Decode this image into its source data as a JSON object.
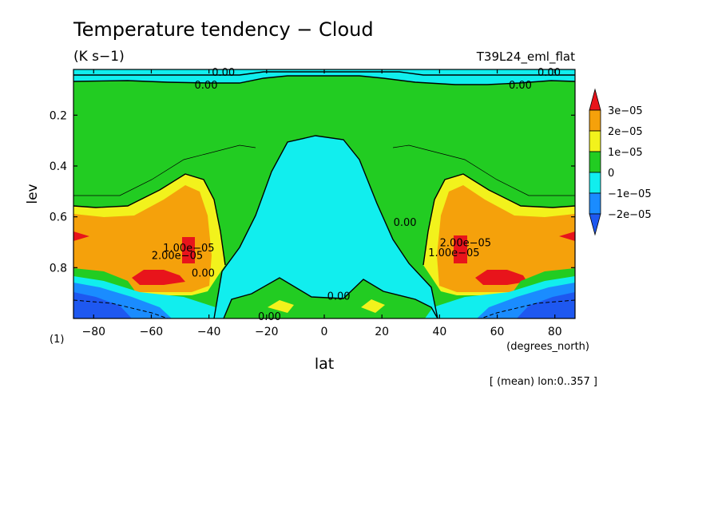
{
  "header": {
    "title": "Temperature tendency − Cloud",
    "units": "(K s−1)",
    "experiment": "T39L24_eml_flat",
    "footnote": "[ (mean) lon:0..357 ]"
  },
  "chart_data": {
    "type": "heatmap",
    "title": "Temperature tendency − Cloud",
    "xlabel": "lat",
    "xunits": "(degrees_north)",
    "ylabel": "lev",
    "yunits": "(1)",
    "xlim": [
      -87,
      87
    ],
    "ylim": [
      1.0,
      0.02
    ],
    "y_reversed": true,
    "x_ticks": [
      -80,
      -60,
      -40,
      -20,
      0,
      20,
      40,
      60,
      80
    ],
    "x_tick_labels": [
      "−80",
      "−60",
      "−40",
      "−20",
      "0",
      "20",
      "40",
      "60",
      "80"
    ],
    "y_ticks": [
      0.2,
      0.4,
      0.6,
      0.8
    ],
    "y_tick_labels": [
      "0.2",
      "0.4",
      "0.6",
      "0.8"
    ],
    "levels": [
      -2e-05,
      -1e-05,
      0,
      1e-05,
      2e-05,
      3e-05
    ],
    "colorbar": {
      "labels": [
        "3e−05",
        "2e−05",
        "1e−05",
        "0",
        "−1e−05",
        "−2e−05"
      ],
      "colors": [
        "#e8141b",
        "#f5a10b",
        "#f2f21c",
        "#22cc22",
        "#11eeee",
        "#1a8cff",
        "#1e58f0"
      ]
    },
    "regions": [
      {
        "id": "cyan-band-top",
        "value_range": "-1e-05 to 0",
        "lat": [
          -87,
          87
        ],
        "lev": [
          0.02,
          0.08
        ]
      },
      {
        "id": "green-upper",
        "value_range": "0 to 1e-05",
        "lat": [
          -87,
          87
        ],
        "lev": [
          0.08,
          0.55
        ]
      },
      {
        "id": "cyan-tropics",
        "value_range": "-1e-05 to 0",
        "lat": [
          -38,
          38
        ],
        "lev": [
          0.27,
          0.92
        ]
      },
      {
        "id": "yellow-sh",
        "value_range": "1e-05 to 2e-05",
        "lat": [
          -87,
          -40
        ],
        "lev": [
          0.43,
          0.85
        ]
      },
      {
        "id": "orange-sh",
        "value_range": "2e-05 to 3e-05",
        "lat": [
          -87,
          -45
        ],
        "lev": [
          0.55,
          0.88
        ]
      },
      {
        "id": "red-sh",
        "value_range": "> 3e-05",
        "lat": [
          -68,
          -46
        ],
        "lev": [
          0.7,
          0.88
        ]
      },
      {
        "id": "yellow-nh",
        "value_range": "1e-05 to 2e-05",
        "lat": [
          40,
          87
        ],
        "lev": [
          0.43,
          0.85
        ]
      },
      {
        "id": "orange-nh",
        "value_range": "2e-05 to 3e-05",
        "lat": [
          45,
          87
        ],
        "lev": [
          0.55,
          0.88
        ]
      },
      {
        "id": "red-nh",
        "value_range": "> 3e-05",
        "lat": [
          46,
          68
        ],
        "lev": [
          0.7,
          0.88
        ]
      },
      {
        "id": "blue-surface",
        "value_range": "-2e-05 to -1e-05",
        "lat": [
          -87,
          -60,
          60,
          87
        ],
        "lev": [
          0.85,
          1.0
        ]
      },
      {
        "id": "green-low-tropics",
        "value_range": "0 to 1e-05",
        "lat": [
          -40,
          40
        ],
        "lev": [
          0.9,
          1.0
        ]
      }
    ],
    "contour_labels": [
      {
        "text": "0.00",
        "lat": -35,
        "lev": 0.03
      },
      {
        "text": "0.00",
        "lat": -41,
        "lev": 0.08
      },
      {
        "text": "0.00",
        "lat": 78,
        "lev": 0.03
      },
      {
        "text": "0.00",
        "lat": 68,
        "lev": 0.08
      },
      {
        "text": "0.00",
        "lat": 28,
        "lev": 0.62
      },
      {
        "text": "0.00",
        "lat": 5,
        "lev": 0.91
      },
      {
        "text": "0.00",
        "lat": -42,
        "lev": 0.82
      },
      {
        "text": "0.00",
        "lat": -19,
        "lev": 0.99
      },
      {
        "text": "2.00e−05",
        "lat": -51,
        "lev": 0.75
      },
      {
        "text": "1.00e−05",
        "lat": -47,
        "lev": 0.72
      },
      {
        "text": "2.00e−05",
        "lat": 49,
        "lev": 0.7
      },
      {
        "text": "1.00e−05",
        "lat": 45,
        "lev": 0.74
      }
    ]
  }
}
